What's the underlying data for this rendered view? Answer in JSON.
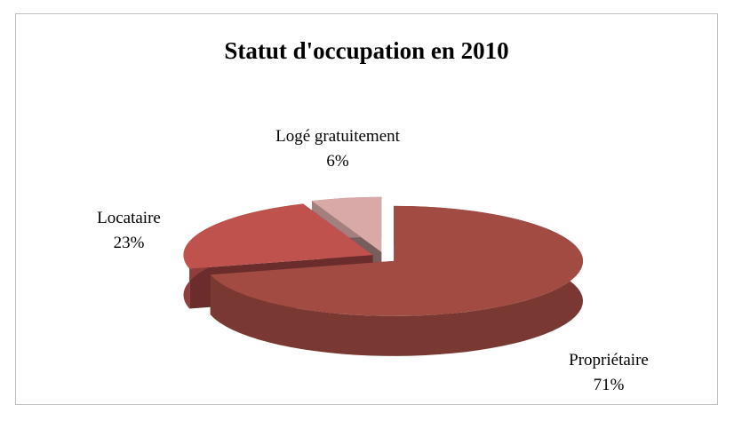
{
  "chart_data": {
    "type": "pie",
    "title": "Statut d'occupation en 2010",
    "categories": [
      "Propriétaire",
      "Locataire",
      "Logé gratuitement"
    ],
    "values": [
      71,
      23,
      6
    ],
    "value_labels": [
      "71%",
      "23%",
      "6%"
    ],
    "colors": [
      "#a24b42",
      "#c0524e",
      "#d9a9a8"
    ]
  }
}
